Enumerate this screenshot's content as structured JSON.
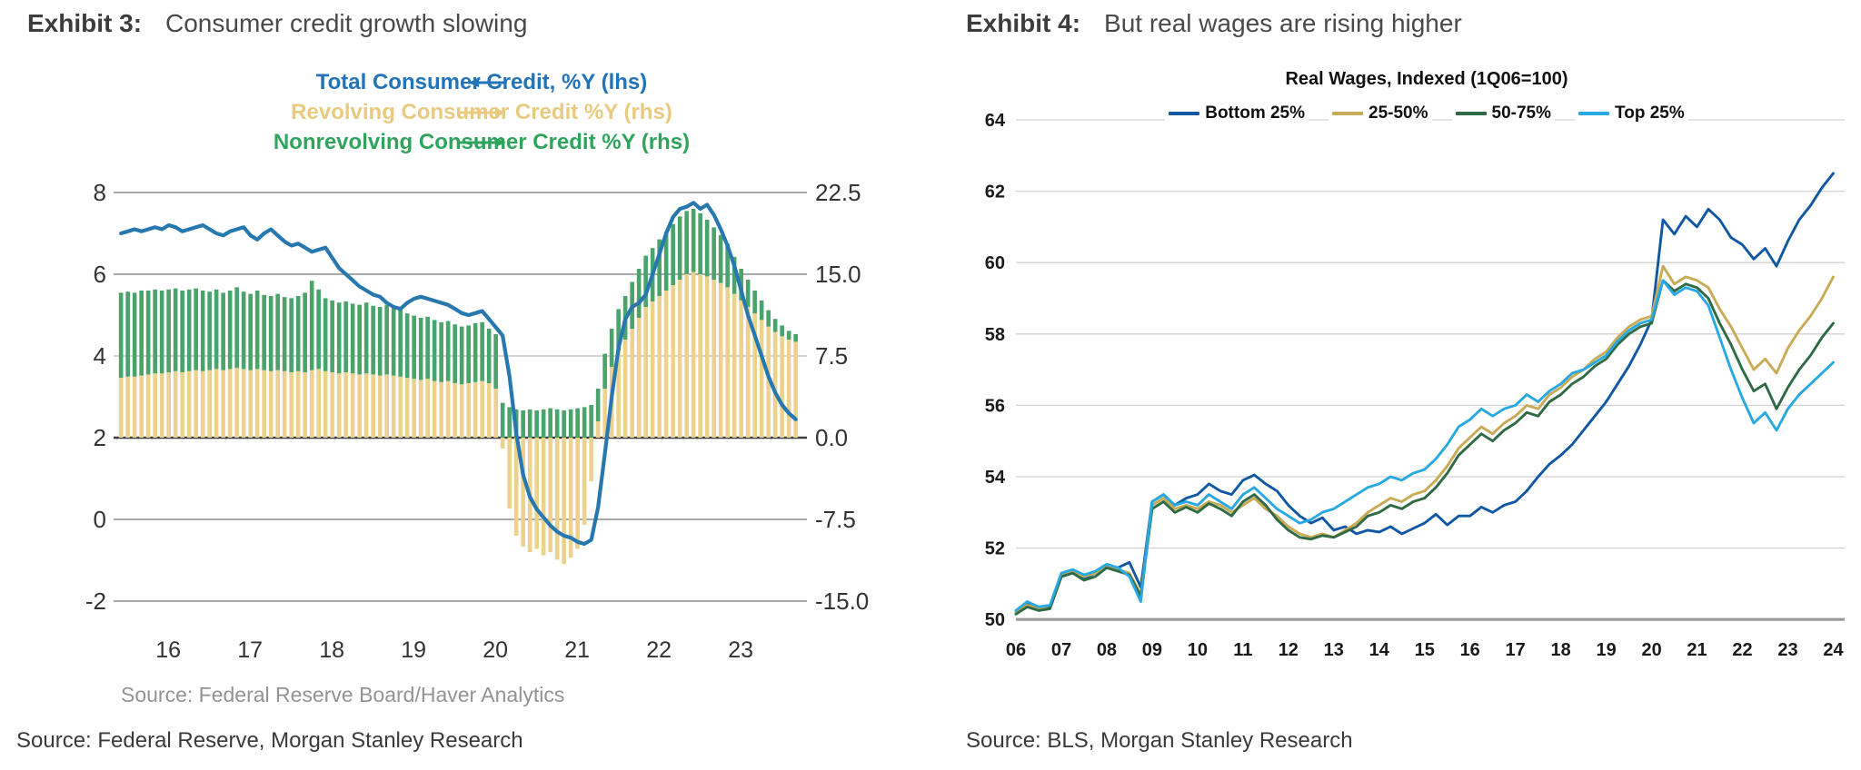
{
  "left": {
    "exhibit_label": "Exhibit 3:",
    "exhibit_title": "Consumer credit growth slowing",
    "legend": [
      {
        "label": "Total Consumer Credit, %Y (lhs)",
        "color": "#2273b8",
        "arrow": "left"
      },
      {
        "label": "Revolving Consumer Credit %Y (rhs)",
        "color": "#e9cb80",
        "arrow": "right"
      },
      {
        "label": "Nonrevolving Consumer Credit %Y (rhs)",
        "color": "#2fa45c",
        "arrow": "right"
      }
    ],
    "chart_source": "Source:  Federal Reserve Board/Haver Analytics",
    "bottom_source": "Source: Federal Reserve, Morgan Stanley Research",
    "chart_data": {
      "type": "bar+line",
      "title": "",
      "x_start_year": 2015,
      "x_start_month": 7,
      "frequency": "monthly",
      "lhs_axis": {
        "ticks": [
          "8",
          "6",
          "4",
          "2",
          "0",
          "-2"
        ],
        "range": [
          -2,
          8
        ]
      },
      "rhs_axis": {
        "ticks": [
          "22.5",
          "15.0",
          "7.5",
          "0.0",
          "-7.5",
          "-15.0"
        ],
        "range": [
          -15.0,
          22.5
        ]
      },
      "x_ticks": [
        "16",
        "17",
        "18",
        "19",
        "20",
        "21",
        "22",
        "23"
      ],
      "line_color": "#2878b0",
      "bar_color_revolving": "#ecd28c",
      "bar_color_nonrevolving": "#4aa36b",
      "series": [
        {
          "name": "Total Consumer Credit, %Y (lhs)",
          "axis": "lhs",
          "type": "line",
          "values": [
            7.0,
            7.05,
            7.1,
            7.05,
            7.1,
            7.15,
            7.1,
            7.2,
            7.15,
            7.05,
            7.1,
            7.15,
            7.2,
            7.1,
            7.0,
            6.95,
            7.05,
            7.1,
            7.15,
            6.95,
            6.85,
            7.0,
            7.1,
            6.95,
            6.8,
            6.7,
            6.75,
            6.65,
            6.55,
            6.6,
            6.65,
            6.4,
            6.15,
            6.0,
            5.85,
            5.7,
            5.6,
            5.5,
            5.45,
            5.3,
            5.2,
            5.15,
            5.3,
            5.4,
            5.45,
            5.4,
            5.35,
            5.3,
            5.25,
            5.15,
            5.05,
            5.0,
            5.05,
            5.1,
            4.9,
            4.7,
            4.5,
            3.5,
            2.1,
            1.1,
            0.55,
            0.25,
            0.05,
            -0.15,
            -0.3,
            -0.4,
            -0.45,
            -0.55,
            -0.6,
            -0.5,
            0.3,
            1.6,
            3.0,
            4.2,
            4.9,
            5.2,
            5.3,
            5.5,
            6.0,
            6.5,
            7.0,
            7.4,
            7.6,
            7.65,
            7.75,
            7.6,
            7.7,
            7.45,
            7.1,
            6.7,
            6.2,
            5.6,
            5.0,
            4.5,
            4.0,
            3.5,
            3.1,
            2.8,
            2.6,
            2.45
          ]
        },
        {
          "name": "Revolving Consumer Credit %Y (rhs)",
          "axis": "rhs",
          "type": "bar",
          "values": [
            5.5,
            5.6,
            5.6,
            5.7,
            5.8,
            5.9,
            5.9,
            6.0,
            6.1,
            6.0,
            6.1,
            6.2,
            6.1,
            6.2,
            6.3,
            6.2,
            6.3,
            6.4,
            6.3,
            6.2,
            6.3,
            6.2,
            6.1,
            6.2,
            6.1,
            6.0,
            6.1,
            6.0,
            6.2,
            6.3,
            6.1,
            6.0,
            5.9,
            6.0,
            5.9,
            5.8,
            5.9,
            5.8,
            5.7,
            5.8,
            5.7,
            5.6,
            5.5,
            5.4,
            5.3,
            5.4,
            5.2,
            5.1,
            5.2,
            5.0,
            4.9,
            5.0,
            5.1,
            5.2,
            5.0,
            4.5,
            -1.0,
            -6.5,
            -9.0,
            -10.0,
            -10.5,
            -10.2,
            -10.8,
            -10.5,
            -11.2,
            -11.6,
            -11.0,
            -10.2,
            -8.0,
            -4.0,
            1.5,
            4.5,
            6.5,
            8.0,
            9.0,
            10.0,
            11.0,
            12.0,
            12.5,
            13.0,
            13.5,
            14.0,
            14.5,
            15.0,
            15.2,
            15.0,
            14.8,
            14.5,
            14.2,
            13.8,
            13.2,
            12.6,
            12.0,
            11.4,
            10.8,
            10.2,
            9.7,
            9.3,
            9.0,
            8.8
          ]
        },
        {
          "name": "Nonrevolving Consumer Credit %Y (rhs)",
          "axis": "rhs",
          "type": "bar-stacked-height",
          "values": [
            7.8,
            7.8,
            7.7,
            7.8,
            7.7,
            7.7,
            7.6,
            7.6,
            7.6,
            7.5,
            7.5,
            7.5,
            7.4,
            7.2,
            7.3,
            7.1,
            7.2,
            7.4,
            7.1,
            7.0,
            7.2,
            6.9,
            6.9,
            7.0,
            6.8,
            6.8,
            6.9,
            7.3,
            8.2,
            7.3,
            6.7,
            6.6,
            6.5,
            6.5,
            6.4,
            6.4,
            6.5,
            6.3,
            6.3,
            6.4,
            6.2,
            6.2,
            5.9,
            5.8,
            5.7,
            5.7,
            5.6,
            5.5,
            5.5,
            5.4,
            5.3,
            5.3,
            5.4,
            5.4,
            5.0,
            5.0,
            3.2,
            2.8,
            2.6,
            2.5,
            2.6,
            2.5,
            2.6,
            2.7,
            2.6,
            2.5,
            2.6,
            2.7,
            2.8,
            3.0,
            3.0,
            3.2,
            3.5,
            3.8,
            4.0,
            4.3,
            4.5,
            4.7,
            4.9,
            5.2,
            5.4,
            5.6,
            5.8,
            5.8,
            5.8,
            5.6,
            5.2,
            4.8,
            4.4,
            4.0,
            3.4,
            2.9,
            2.5,
            2.1,
            1.8,
            1.5,
            1.2,
            1.0,
            0.8,
            0.7
          ]
        }
      ]
    }
  },
  "right": {
    "exhibit_label": "Exhibit 4:",
    "exhibit_title": "But real wages are rising higher",
    "chart_title": "Real Wages, Indexed (1Q06=100)",
    "bottom_source": "Source: BLS, Morgan Stanley Research",
    "chart_data": {
      "type": "line",
      "title": "Real Wages, Indexed (1Q06=100)",
      "frequency": "quarterly",
      "x_start": 2006.0,
      "ylim": [
        50,
        64
      ],
      "y_ticks": [
        "64",
        "62",
        "60",
        "58",
        "56",
        "54",
        "52",
        "50"
      ],
      "x_ticks": [
        "06",
        "07",
        "08",
        "09",
        "10",
        "11",
        "12",
        "13",
        "14",
        "15",
        "16",
        "17",
        "18",
        "19",
        "20",
        "21",
        "22",
        "23",
        "24"
      ],
      "legend_position": "top",
      "grid": true,
      "series": [
        {
          "name": "Bottom 25%",
          "color": "#1058a4",
          "values": [
            50.2,
            50.45,
            50.3,
            50.35,
            51.2,
            51.3,
            51.15,
            51.3,
            51.5,
            51.45,
            51.6,
            50.9,
            53.3,
            53.5,
            53.2,
            53.4,
            53.5,
            53.8,
            53.6,
            53.5,
            53.9,
            54.05,
            53.8,
            53.6,
            53.2,
            52.9,
            52.7,
            52.85,
            52.5,
            52.6,
            52.4,
            52.5,
            52.45,
            52.6,
            52.4,
            52.55,
            52.7,
            52.95,
            52.65,
            52.9,
            52.9,
            53.15,
            53.0,
            53.2,
            53.3,
            53.6,
            54.0,
            54.35,
            54.6,
            54.9,
            55.3,
            55.7,
            56.1,
            56.6,
            57.1,
            57.7,
            58.4,
            61.2,
            60.8,
            61.3,
            61.0,
            61.5,
            61.2,
            60.7,
            60.5,
            60.1,
            60.4,
            59.9,
            60.6,
            61.2,
            61.6,
            62.1,
            62.5
          ]
        },
        {
          "name": "25-50%",
          "color": "#c9aa55",
          "values": [
            50.2,
            50.4,
            50.3,
            50.4,
            51.25,
            51.35,
            51.2,
            51.3,
            51.5,
            51.4,
            51.3,
            50.7,
            53.2,
            53.4,
            53.1,
            53.2,
            53.1,
            53.3,
            53.2,
            53.0,
            53.2,
            53.4,
            53.1,
            52.9,
            52.6,
            52.4,
            52.3,
            52.4,
            52.3,
            52.5,
            52.7,
            53.0,
            53.2,
            53.4,
            53.3,
            53.5,
            53.6,
            53.9,
            54.3,
            54.8,
            55.1,
            55.4,
            55.2,
            55.5,
            55.7,
            56.0,
            55.9,
            56.3,
            56.5,
            56.8,
            57.0,
            57.3,
            57.5,
            57.9,
            58.2,
            58.4,
            58.5,
            59.9,
            59.4,
            59.6,
            59.5,
            59.3,
            58.7,
            58.2,
            57.6,
            57.0,
            57.3,
            56.9,
            57.6,
            58.1,
            58.5,
            59.0,
            59.6
          ]
        },
        {
          "name": "50-75%",
          "color": "#2e6b45",
          "values": [
            50.15,
            50.35,
            50.25,
            50.3,
            51.2,
            51.3,
            51.1,
            51.2,
            51.45,
            51.35,
            51.25,
            50.65,
            53.1,
            53.3,
            53.0,
            53.15,
            53.0,
            53.25,
            53.1,
            52.9,
            53.3,
            53.5,
            53.2,
            52.8,
            52.5,
            52.3,
            52.25,
            52.35,
            52.3,
            52.45,
            52.6,
            52.9,
            53.0,
            53.2,
            53.1,
            53.3,
            53.4,
            53.7,
            54.1,
            54.6,
            54.9,
            55.2,
            55.0,
            55.3,
            55.5,
            55.8,
            55.7,
            56.1,
            56.3,
            56.6,
            56.8,
            57.1,
            57.3,
            57.7,
            58.0,
            58.2,
            58.3,
            59.5,
            59.2,
            59.4,
            59.3,
            59.0,
            58.3,
            57.7,
            57.0,
            56.4,
            56.6,
            55.9,
            56.5,
            57.0,
            57.4,
            57.9,
            58.3
          ]
        },
        {
          "name": "Top 25%",
          "color": "#28a9e1",
          "values": [
            50.25,
            50.5,
            50.35,
            50.4,
            51.3,
            51.4,
            51.25,
            51.35,
            51.55,
            51.45,
            51.2,
            50.5,
            53.3,
            53.5,
            53.2,
            53.3,
            53.2,
            53.5,
            53.3,
            53.1,
            53.5,
            53.7,
            53.4,
            53.1,
            52.9,
            52.7,
            52.8,
            53.0,
            53.1,
            53.3,
            53.5,
            53.7,
            53.8,
            54.0,
            53.9,
            54.1,
            54.2,
            54.5,
            54.9,
            55.4,
            55.6,
            55.9,
            55.7,
            55.9,
            56.0,
            56.3,
            56.1,
            56.4,
            56.6,
            56.9,
            57.0,
            57.2,
            57.4,
            57.8,
            58.1,
            58.3,
            58.4,
            59.5,
            59.1,
            59.3,
            59.2,
            58.8,
            57.9,
            57.0,
            56.2,
            55.5,
            55.8,
            55.3,
            55.9,
            56.3,
            56.6,
            56.9,
            57.2
          ]
        }
      ]
    }
  }
}
